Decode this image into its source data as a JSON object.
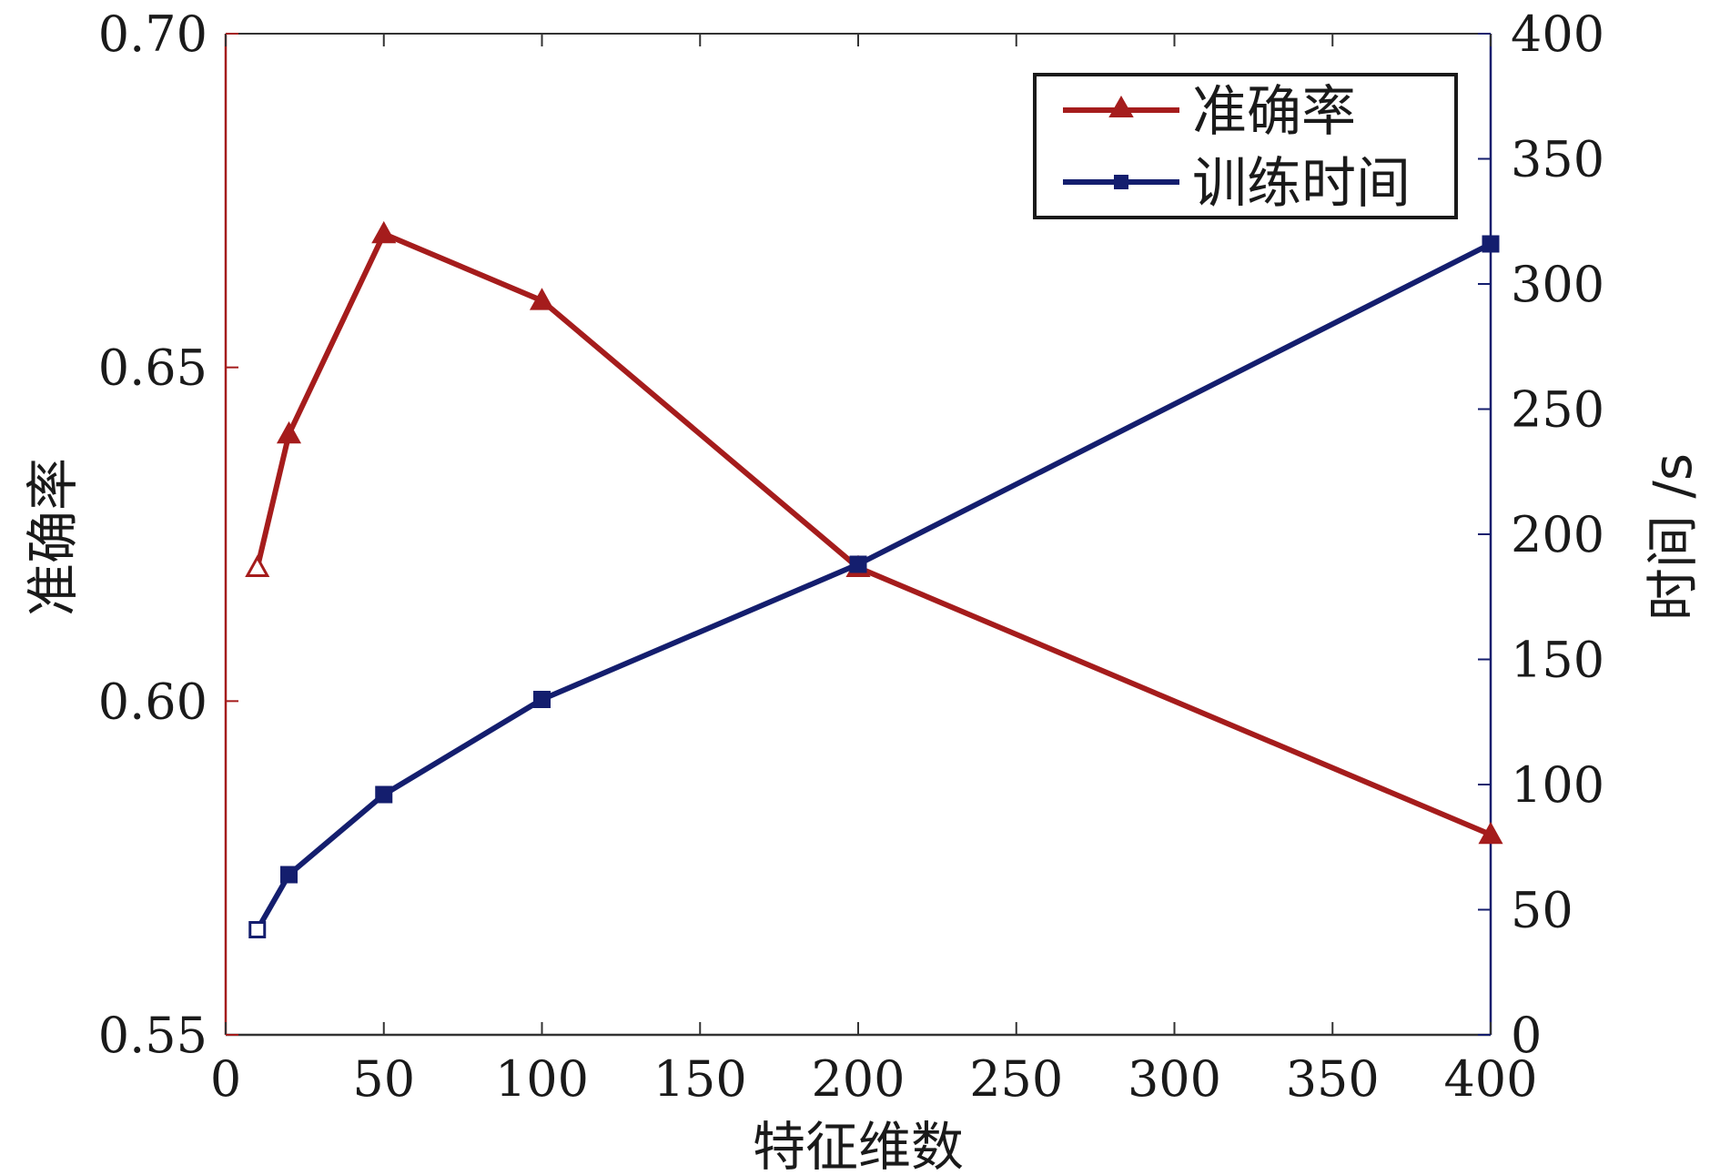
{
  "chart_data": {
    "type": "line",
    "xlabel": "特征维数",
    "ylabel_left": "准确率",
    "ylabel_right": "时间 /s",
    "xlim": [
      0,
      400
    ],
    "ylim_left": [
      0.55,
      0.7
    ],
    "ylim_right": [
      0,
      400
    ],
    "x_ticks": [
      "0",
      "50",
      "100",
      "150",
      "200",
      "250",
      "300",
      "350",
      "400"
    ],
    "y_left_ticks": [
      "0.55",
      "0.60",
      "0.65",
      "0.70"
    ],
    "y_right_ticks": [
      "0",
      "50",
      "100",
      "150",
      "200",
      "250",
      "300",
      "350",
      "400"
    ],
    "grid": false,
    "legend_position": "top-right",
    "series": [
      {
        "name": "准确率",
        "axis": "left",
        "marker": "triangle",
        "color": "#a51c1c",
        "x": [
          10,
          20,
          50,
          100,
          200,
          400
        ],
        "values": [
          0.62,
          0.64,
          0.67,
          0.66,
          0.62,
          0.58
        ]
      },
      {
        "name": "训练时间",
        "axis": "right",
        "marker": "square",
        "color": "#141e6e",
        "x": [
          10,
          20,
          50,
          100,
          200,
          400
        ],
        "values": [
          42,
          64,
          96,
          134,
          188,
          316
        ]
      }
    ]
  }
}
